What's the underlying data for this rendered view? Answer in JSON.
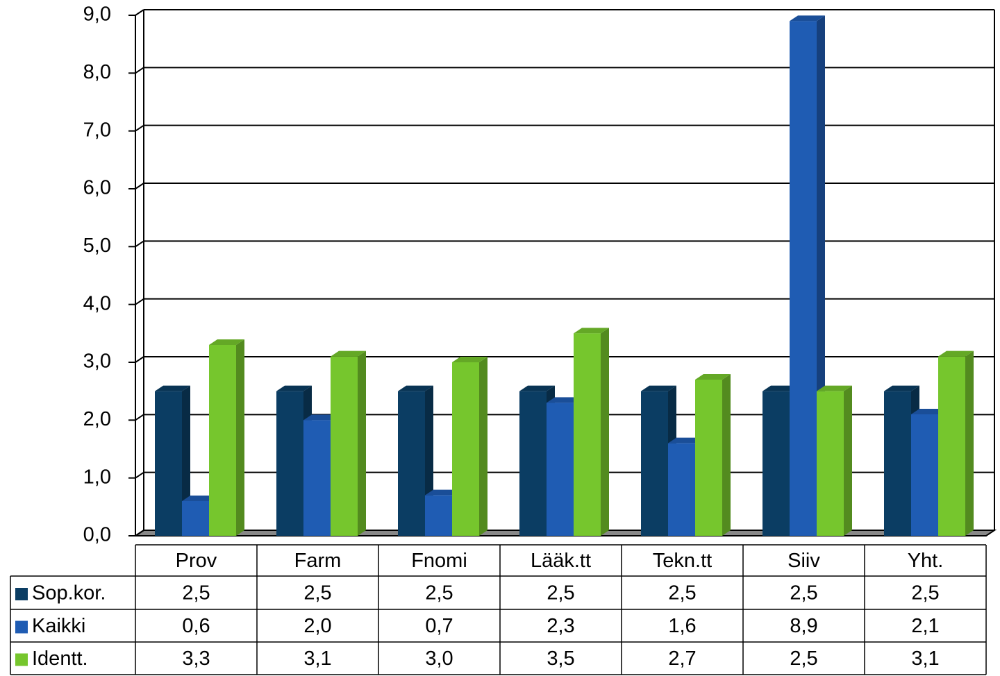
{
  "chart_data": {
    "type": "bar",
    "categories": [
      "Prov",
      "Farm",
      "Fnomi",
      "Lääk.tt",
      "Tekn.tt",
      "Siiv",
      "Yht."
    ],
    "series": [
      {
        "name": "Sop.kor.",
        "color": "#0b3d63",
        "values": [
          2.5,
          2.5,
          2.5,
          2.5,
          2.5,
          2.5,
          2.5
        ],
        "value_labels": [
          "2,5",
          "2,5",
          "2,5",
          "2,5",
          "2,5",
          "2,5",
          "2,5"
        ]
      },
      {
        "name": "Kaikki",
        "color": "#1f5cb3",
        "values": [
          0.6,
          2.0,
          0.7,
          2.3,
          1.6,
          8.9,
          2.1
        ],
        "value_labels": [
          "0,6",
          "2,0",
          "0,7",
          "2,3",
          "1,6",
          "8,9",
          "2,1"
        ]
      },
      {
        "name": "Identt.",
        "color": "#76c62d",
        "values": [
          3.3,
          3.1,
          3.0,
          3.5,
          2.7,
          2.5,
          3.1
        ],
        "value_labels": [
          "3,3",
          "3,1",
          "3,0",
          "3,5",
          "2,7",
          "2,5",
          "3,1"
        ]
      }
    ],
    "ylim": [
      0,
      9
    ],
    "yticks": [
      {
        "value": 0,
        "label": "0,0"
      },
      {
        "value": 1,
        "label": "1,0"
      },
      {
        "value": 2,
        "label": "2,0"
      },
      {
        "value": 3,
        "label": "3,0"
      },
      {
        "value": 4,
        "label": "4,0"
      },
      {
        "value": 5,
        "label": "5,0"
      },
      {
        "value": 6,
        "label": "6,0"
      },
      {
        "value": 7,
        "label": "7,0"
      },
      {
        "value": 8,
        "label": "8,0"
      },
      {
        "value": 9,
        "label": "9,0"
      }
    ],
    "grid": true
  }
}
